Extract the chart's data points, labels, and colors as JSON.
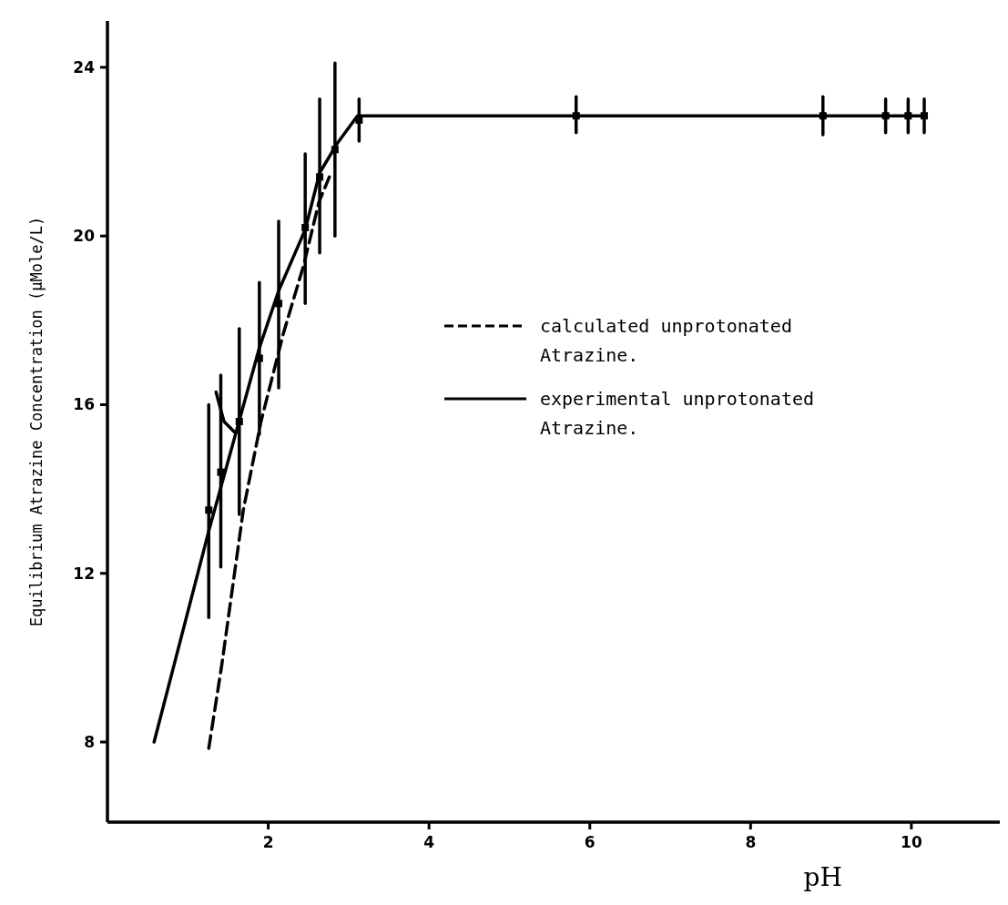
{
  "chart_data": {
    "type": "line",
    "xlabel": "pH",
    "ylabel": "Equilibrium Atrazine Concentration (µMole/L)",
    "xlim": [
      0,
      11.1
    ],
    "ylim": [
      6.1,
      25.1
    ],
    "xticks": [
      2,
      4,
      6,
      8,
      10
    ],
    "yticks": [
      8,
      12,
      16,
      20,
      24
    ],
    "legend": "right",
    "series": [
      {
        "name": "calculated unprotonated Atrazine.",
        "color": "#000000",
        "line_style": "dashed",
        "marker": "none",
        "x": [
          1.26,
          1.42,
          1.69,
          1.91,
          2.19,
          2.44,
          2.63,
          2.76
        ],
        "values": [
          7.85,
          9.8,
          13.5,
          15.6,
          17.7,
          19.3,
          20.8,
          21.4
        ]
      },
      {
        "name": "experimental unprotonated Atrazine.",
        "color": "#000000",
        "line_style": "solid",
        "marker": "none",
        "x": [
          0.58,
          1.26,
          1.89,
          2.13,
          2.46,
          2.64,
          2.86,
          3.11,
          5.83,
          8.9,
          9.68,
          9.96,
          10.16
        ],
        "values": [
          8.0,
          13.0,
          17.35,
          18.7,
          20.15,
          21.5,
          22.2,
          22.85,
          22.85,
          22.85,
          22.85,
          22.85,
          22.85
        ]
      },
      {
        "color": "#000000",
        "line_style": "solid",
        "marker": "none",
        "x": [
          1.35,
          1.45,
          1.58
        ],
        "values": [
          16.3,
          15.6,
          15.35
        ]
      },
      {
        "color": "#000000",
        "type": "scatter",
        "marker": "square",
        "x": [
          1.26,
          1.41,
          1.64,
          1.89,
          2.13,
          2.46,
          2.64,
          2.83,
          3.13,
          5.83,
          8.9,
          9.68,
          9.96,
          10.16
        ],
        "values": [
          13.5,
          14.4,
          15.6,
          17.1,
          18.4,
          20.2,
          21.4,
          22.05,
          22.75,
          22.85,
          22.85,
          22.85,
          22.85,
          22.85
        ],
        "errors": [
          [
            10.95,
            16.0
          ],
          [
            12.15,
            16.7
          ],
          [
            13.4,
            17.8
          ],
          [
            15.3,
            18.9
          ],
          [
            16.4,
            20.35
          ],
          [
            18.4,
            21.95
          ],
          [
            19.6,
            23.25
          ],
          [
            20.0,
            24.1
          ],
          [
            22.25,
            23.25
          ],
          [
            22.45,
            23.3
          ],
          [
            22.4,
            23.3
          ],
          [
            22.45,
            23.25
          ],
          [
            22.45,
            23.25
          ],
          [
            22.45,
            23.25
          ]
        ]
      }
    ]
  }
}
